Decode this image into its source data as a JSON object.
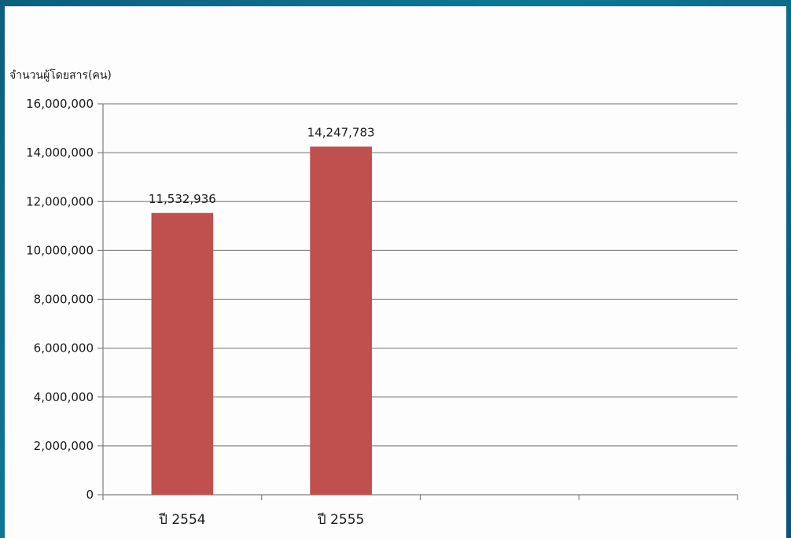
{
  "colors": {
    "bar": "#c0504d",
    "grid": "#8c8c8c",
    "axis": "#7f7f7f",
    "panel": "#fdfdfd"
  },
  "chart_data": {
    "type": "bar",
    "title": "",
    "ylabel": "จำนวนผู้โดยสาร(คน)",
    "xlabel": "",
    "categories": [
      "ปี 2554",
      "ปี 2555",
      "",
      ""
    ],
    "series": [
      {
        "values": [
          11532936,
          14247783,
          null,
          null
        ]
      }
    ],
    "data_labels": [
      "11,532,936",
      "14,247,783"
    ],
    "ylim": [
      0,
      16000000
    ],
    "yticks": [
      "0",
      "2,000,000",
      "4,000,000",
      "6,000,000",
      "8,000,000",
      "10,000,000",
      "12,000,000",
      "14,000,000",
      "16,000,000"
    ],
    "grid": true,
    "legend": "none"
  }
}
